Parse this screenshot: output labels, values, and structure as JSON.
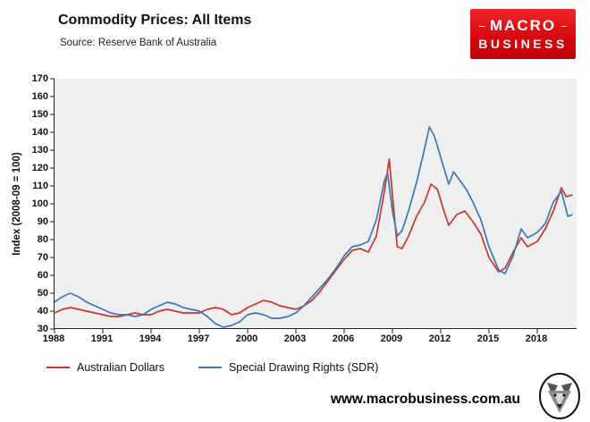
{
  "header": {
    "title": "Commodity Prices: All Items",
    "source": "Source: Reserve Bank of Australia"
  },
  "logo": {
    "line1": "MACRO",
    "line2": "BUSINESS",
    "background": "#d6060e"
  },
  "chart_data": {
    "type": "line",
    "title": "Commodity Prices: All Items",
    "subtitle": "Source: Reserve Bank of Australia",
    "xlabel": "",
    "ylabel": "Index (2008-09 = 100)",
    "xlim": [
      1988,
      2020.5
    ],
    "ylim": [
      30,
      170
    ],
    "yticks": [
      30,
      40,
      50,
      60,
      70,
      80,
      90,
      100,
      110,
      120,
      130,
      140,
      150,
      160,
      170
    ],
    "xticks": [
      1988,
      1991,
      1994,
      1997,
      2000,
      2003,
      2006,
      2009,
      2012,
      2015,
      2018
    ],
    "grid": false,
    "plot_background": "#efefef",
    "legend_position": "bottom",
    "series": [
      {
        "name": "Australian Dollars",
        "color": "#c8372d",
        "points": [
          [
            1988,
            39
          ],
          [
            1988.5,
            41
          ],
          [
            1989,
            42
          ],
          [
            1989.5,
            41
          ],
          [
            1990,
            40
          ],
          [
            1990.5,
            39
          ],
          [
            1991,
            38
          ],
          [
            1991.5,
            37
          ],
          [
            1992,
            37
          ],
          [
            1992.5,
            38
          ],
          [
            1993,
            39
          ],
          [
            1993.5,
            38
          ],
          [
            1994,
            38
          ],
          [
            1994.5,
            40
          ],
          [
            1995,
            41
          ],
          [
            1995.5,
            40
          ],
          [
            1996,
            39
          ],
          [
            1996.5,
            39
          ],
          [
            1997,
            39
          ],
          [
            1997.5,
            41
          ],
          [
            1998,
            42
          ],
          [
            1998.5,
            41
          ],
          [
            1999,
            38
          ],
          [
            1999.5,
            39
          ],
          [
            2000,
            42
          ],
          [
            2000.5,
            44
          ],
          [
            2001,
            46
          ],
          [
            2001.5,
            45
          ],
          [
            2002,
            43
          ],
          [
            2002.5,
            42
          ],
          [
            2003,
            41
          ],
          [
            2003.5,
            43
          ],
          [
            2004,
            46
          ],
          [
            2004.5,
            51
          ],
          [
            2005,
            57
          ],
          [
            2005.5,
            63
          ],
          [
            2006,
            69
          ],
          [
            2006.5,
            74
          ],
          [
            2007,
            75
          ],
          [
            2007.5,
            73
          ],
          [
            2008,
            82
          ],
          [
            2008.5,
            107
          ],
          [
            2008.8,
            125
          ],
          [
            2009.1,
            95
          ],
          [
            2009.3,
            76
          ],
          [
            2009.6,
            75
          ],
          [
            2010,
            82
          ],
          [
            2010.5,
            93
          ],
          [
            2011,
            101
          ],
          [
            2011.4,
            111
          ],
          [
            2011.8,
            108
          ],
          [
            2012.2,
            96
          ],
          [
            2012.5,
            88
          ],
          [
            2013,
            94
          ],
          [
            2013.5,
            96
          ],
          [
            2014,
            90
          ],
          [
            2014.5,
            83
          ],
          [
            2015,
            70
          ],
          [
            2015.6,
            62
          ],
          [
            2016,
            64
          ],
          [
            2016.5,
            73
          ],
          [
            2017,
            81
          ],
          [
            2017.4,
            76
          ],
          [
            2018,
            79
          ],
          [
            2018.5,
            86
          ],
          [
            2019,
            96
          ],
          [
            2019.5,
            109
          ],
          [
            2019.8,
            104
          ],
          [
            2020.2,
            105
          ]
        ]
      },
      {
        "name": "Special Drawing Rights (SDR)",
        "color": "#3b78b5",
        "points": [
          [
            1988,
            45
          ],
          [
            1988.3,
            47
          ],
          [
            1988.7,
            49
          ],
          [
            1989,
            50
          ],
          [
            1989.5,
            48
          ],
          [
            1990,
            45
          ],
          [
            1990.5,
            43
          ],
          [
            1991,
            41
          ],
          [
            1991.5,
            39
          ],
          [
            1992,
            38
          ],
          [
            1992.5,
            38
          ],
          [
            1993,
            37
          ],
          [
            1993.5,
            38
          ],
          [
            1994,
            41
          ],
          [
            1994.5,
            43
          ],
          [
            1995,
            45
          ],
          [
            1995.5,
            44
          ],
          [
            1996,
            42
          ],
          [
            1996.5,
            41
          ],
          [
            1997,
            40
          ],
          [
            1997.5,
            37
          ],
          [
            1998,
            33
          ],
          [
            1998.5,
            31
          ],
          [
            1999,
            32
          ],
          [
            1999.5,
            34
          ],
          [
            2000,
            38
          ],
          [
            2000.5,
            39
          ],
          [
            2001,
            38
          ],
          [
            2001.5,
            36
          ],
          [
            2002,
            36
          ],
          [
            2002.5,
            37
          ],
          [
            2003,
            39
          ],
          [
            2003.5,
            43
          ],
          [
            2004,
            48
          ],
          [
            2004.5,
            53
          ],
          [
            2005,
            58
          ],
          [
            2005.5,
            64
          ],
          [
            2006,
            71
          ],
          [
            2006.5,
            76
          ],
          [
            2007,
            77
          ],
          [
            2007.5,
            79
          ],
          [
            2008,
            91
          ],
          [
            2008.5,
            113
          ],
          [
            2008.7,
            117
          ],
          [
            2009,
            96
          ],
          [
            2009.3,
            82
          ],
          [
            2009.6,
            85
          ],
          [
            2010,
            96
          ],
          [
            2010.5,
            112
          ],
          [
            2011,
            131
          ],
          [
            2011.3,
            143
          ],
          [
            2011.6,
            138
          ],
          [
            2012,
            126
          ],
          [
            2012.5,
            111
          ],
          [
            2012.8,
            118
          ],
          [
            2013.2,
            113
          ],
          [
            2013.6,
            108
          ],
          [
            2014,
            101
          ],
          [
            2014.5,
            91
          ],
          [
            2015,
            76
          ],
          [
            2015.6,
            63
          ],
          [
            2016,
            61
          ],
          [
            2016.5,
            71
          ],
          [
            2017,
            86
          ],
          [
            2017.4,
            81
          ],
          [
            2018,
            84
          ],
          [
            2018.5,
            89
          ],
          [
            2019,
            101
          ],
          [
            2019.5,
            107
          ],
          [
            2019.9,
            93
          ],
          [
            2020.2,
            94
          ]
        ]
      }
    ]
  },
  "footer": {
    "website": "www.macrobusiness.com.au",
    "wolf_logo": "macrobusiness-wolf-emblem"
  }
}
